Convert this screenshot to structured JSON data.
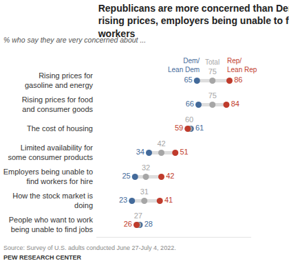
{
  "chart_data": {
    "type": "dot",
    "title": "Republicans are more concerned than Democrats over rising prices, employers being unable to find workers",
    "subtitle": "% who say they are very concerned about ...",
    "source": "Source: Survey of U.S. adults conducted June 27-July 4, 2022.",
    "credit": "PEW RESEARCH CENTER",
    "orientation": "horizontal",
    "categories": [
      "Rising prices for gasoline and energy",
      "Rising prices for food and consumer goods",
      "The cost of housing",
      "Limited availability for some consumer products",
      "Employers being unable to find workers for hire",
      "How the stock market is doing",
      "People who want to work being unable to find jobs"
    ],
    "series": [
      {
        "name": "Dem/Lean Dem",
        "color": "#436a9a",
        "values": [
          65,
          66,
          61,
          34,
          25,
          23,
          28
        ]
      },
      {
        "name": "Total",
        "color": "#a6a6a6",
        "values": [
          75,
          75,
          60,
          42,
          32,
          31,
          27
        ]
      },
      {
        "name": "Rep/Lean Rep",
        "color": "#bf3b2c",
        "values": [
          86,
          84,
          59,
          51,
          42,
          41,
          26
        ]
      }
    ],
    "xlim": [
      0,
      100
    ],
    "tick_labels": "y",
    "data_labels": true,
    "grid": false
  }
}
